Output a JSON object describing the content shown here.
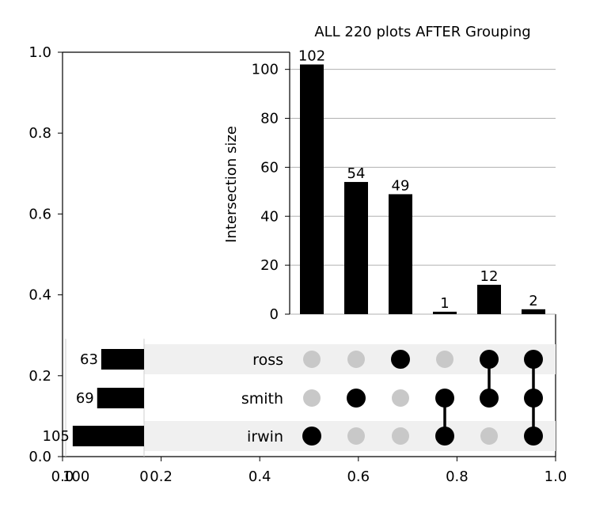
{
  "chart_data": {
    "type": "bar",
    "title": "ALL 220 plots AFTER Grouping",
    "ylabel": "Intersection size",
    "ylim": [
      0,
      107
    ],
    "yticks": [
      "0",
      "20",
      "40",
      "60",
      "80",
      "100"
    ],
    "grid": true,
    "sets": [
      "ross",
      "smith",
      "irwin"
    ],
    "set_sizes": [
      63,
      69,
      105
    ],
    "intersections": [
      {
        "members": [
          "irwin"
        ],
        "value": 102,
        "label": "102"
      },
      {
        "members": [
          "smith"
        ],
        "value": 54,
        "label": "54"
      },
      {
        "members": [
          "ross"
        ],
        "value": 49,
        "label": "49"
      },
      {
        "members": [
          "smith",
          "irwin"
        ],
        "value": 1,
        "label": "1"
      },
      {
        "members": [
          "ross",
          "smith"
        ],
        "value": 12,
        "label": "12"
      },
      {
        "members": [
          "ross",
          "smith",
          "irwin"
        ],
        "value": 2,
        "label": "2"
      }
    ],
    "background_axis": {
      "xlim": [
        0,
        1
      ],
      "ylim": [
        0,
        1
      ],
      "xticks": [
        "0.0",
        "0.2",
        "0.4",
        "0.6",
        "0.8",
        "1.0"
      ],
      "yticks": [
        "0.0",
        "0.2",
        "0.4",
        "0.6",
        "0.8",
        "1.0"
      ]
    },
    "totals_axis": {
      "xlim": [
        120,
        0
      ],
      "xticks": [
        "100",
        "0"
      ]
    }
  },
  "colors": {
    "bar": "#000000",
    "active_dot": "#000000",
    "inactive_dot": "#c8c8c8",
    "shade": "#f0f0f0",
    "grid": "#b0b0b0"
  }
}
